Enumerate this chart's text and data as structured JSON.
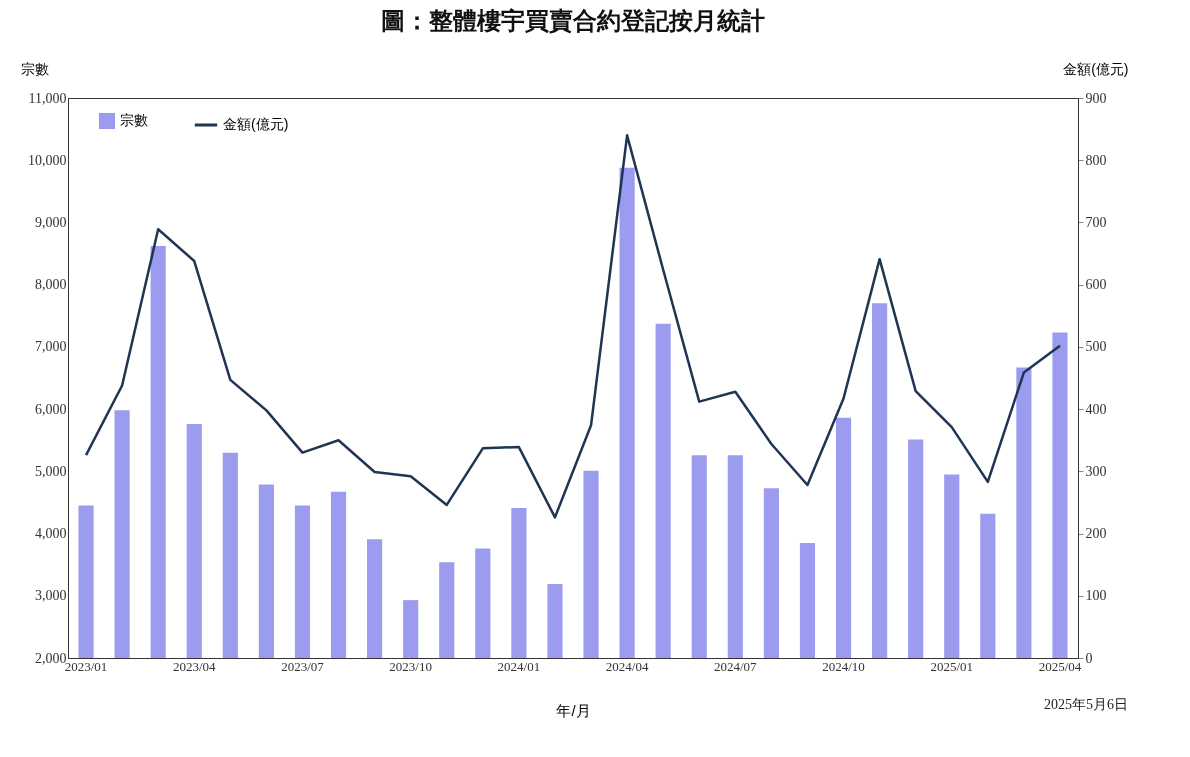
{
  "chart_data": {
    "type": "bar",
    "title": "圖：整體樓宇買賣合約登記按月統計",
    "xlabel": "年/月",
    "ylabel": "宗數",
    "y2label": "金額(億元)",
    "annotations": [
      "2025年5月6日"
    ],
    "categories": [
      "2023/01",
      null,
      null,
      "2023/04",
      null,
      null,
      "2023/07",
      null,
      null,
      "2023/10",
      null,
      null,
      "2024/01",
      null,
      null,
      "2024/04",
      null,
      null,
      "2024/07",
      null,
      null,
      "2024/10",
      null,
      null,
      "2025/01",
      null,
      null,
      "2025/04"
    ],
    "series": [
      {
        "name": "宗數",
        "color": "#9b9bef",
        "values": [
          4450,
          5980,
          8620,
          5760,
          5300,
          4790,
          4450,
          4670,
          3910,
          2930,
          3540,
          3760,
          4410,
          3190,
          5010,
          9880,
          7370,
          5260,
          5260,
          4730,
          3850,
          5860,
          7700,
          5510,
          4950,
          4320,
          6670,
          7230
        ]
      },
      {
        "name": "金額(億元)",
        "type": "line",
        "axis": "y2",
        "color": "#1f3552",
        "values": [
          326,
          438,
          689,
          638,
          447,
          398,
          330,
          350,
          299,
          292,
          246,
          337,
          339,
          226,
          374,
          840,
          624,
          412,
          428,
          344,
          278,
          417,
          641,
          429,
          371,
          283,
          459,
          502
        ]
      }
    ],
    "ylim": [
      2000,
      11000
    ],
    "yticks": [
      {
        "value": 2000,
        "label": "2,000"
      },
      {
        "value": 3000,
        "label": "3,000"
      },
      {
        "value": 4000,
        "label": "4,000"
      },
      {
        "value": 5000,
        "label": "5,000"
      },
      {
        "value": 6000,
        "label": "6,000"
      },
      {
        "value": 7000,
        "label": "7,000"
      },
      {
        "value": 8000,
        "label": "8,000"
      },
      {
        "value": 9000,
        "label": "9,000"
      },
      {
        "value": 10000,
        "label": "10,000"
      },
      {
        "value": 11000,
        "label": "11,000"
      }
    ],
    "y2lim": [
      0,
      900
    ],
    "y2ticks": [
      0,
      100,
      200,
      300,
      400,
      500,
      600,
      700,
      800,
      900
    ],
    "legend": "top left",
    "grid": false
  }
}
